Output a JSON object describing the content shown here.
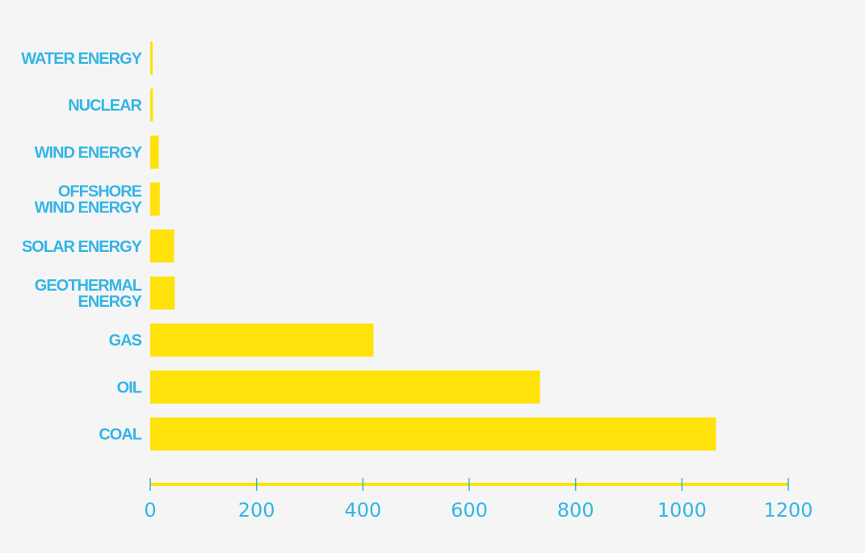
{
  "chart_data": {
    "type": "bar",
    "orientation": "horizontal",
    "categories": [
      "WATER ENERGY",
      "NUCLEAR",
      "WIND ENERGY",
      "OFFSHORE\nWIND ENERGY",
      "SOLAR ENERGY",
      "GEOTHERMAL\nENERGY",
      "GAS",
      "OIL",
      "COAL"
    ],
    "values": [
      4,
      5,
      16,
      18,
      45,
      46,
      420,
      733,
      1064
    ],
    "xlim": [
      0,
      1200
    ],
    "xticks": [
      "0",
      "200",
      "400",
      "600",
      "800",
      "1000",
      "1200"
    ],
    "title": "",
    "xlabel": "",
    "ylabel": "",
    "grid": false,
    "colors": {
      "bar": "#ffe20a",
      "label": "#33b5e5",
      "background": "#f5f5f5"
    }
  }
}
